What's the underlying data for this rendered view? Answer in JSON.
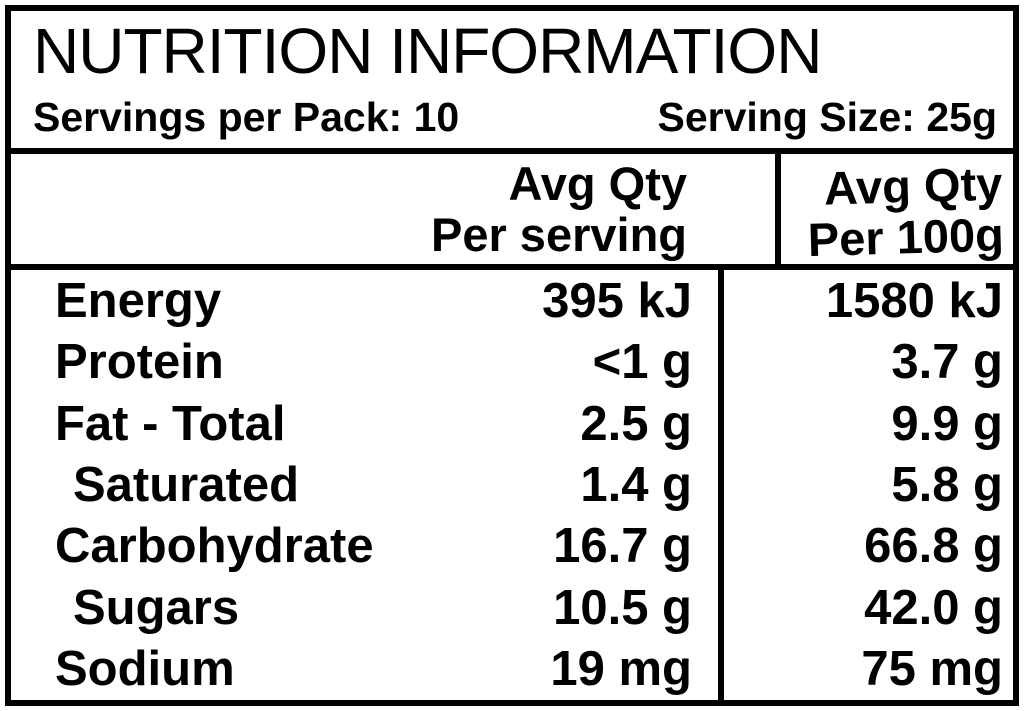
{
  "nutrition_label": {
    "title": "NUTRITION INFORMATION",
    "servings_per_pack": "Servings per Pack: 10",
    "serving_size": "Serving Size: 25g",
    "columns": {
      "per_serving": {
        "line1": "Avg Qty",
        "line2": "Per serving"
      },
      "per_100g": {
        "line1": "Avg Qty",
        "line2": "Per 100g"
      }
    },
    "rows": [
      {
        "nutrient": "Energy",
        "indent": false,
        "per_serving": "395 kJ",
        "per_100g": "1580 kJ"
      },
      {
        "nutrient": "Protein",
        "indent": false,
        "per_serving": "<1 g",
        "per_100g": "3.7 g"
      },
      {
        "nutrient": "Fat - Total",
        "indent": false,
        "per_serving": "2.5 g",
        "per_100g": "9.9 g"
      },
      {
        "nutrient": "Saturated",
        "indent": true,
        "per_serving": "1.4 g",
        "per_100g": "5.8 g"
      },
      {
        "nutrient": "Carbohydrate",
        "indent": false,
        "per_serving": "16.7 g",
        "per_100g": "66.8 g"
      },
      {
        "nutrient": "Sugars",
        "indent": true,
        "per_serving": "10.5 g",
        "per_100g": "42.0 g"
      },
      {
        "nutrient": "Sodium",
        "indent": false,
        "per_serving": "19 mg",
        "per_100g": "75 mg"
      }
    ],
    "colors": {
      "text": "#000000",
      "background": "#ffffff",
      "border": "#000000"
    }
  }
}
